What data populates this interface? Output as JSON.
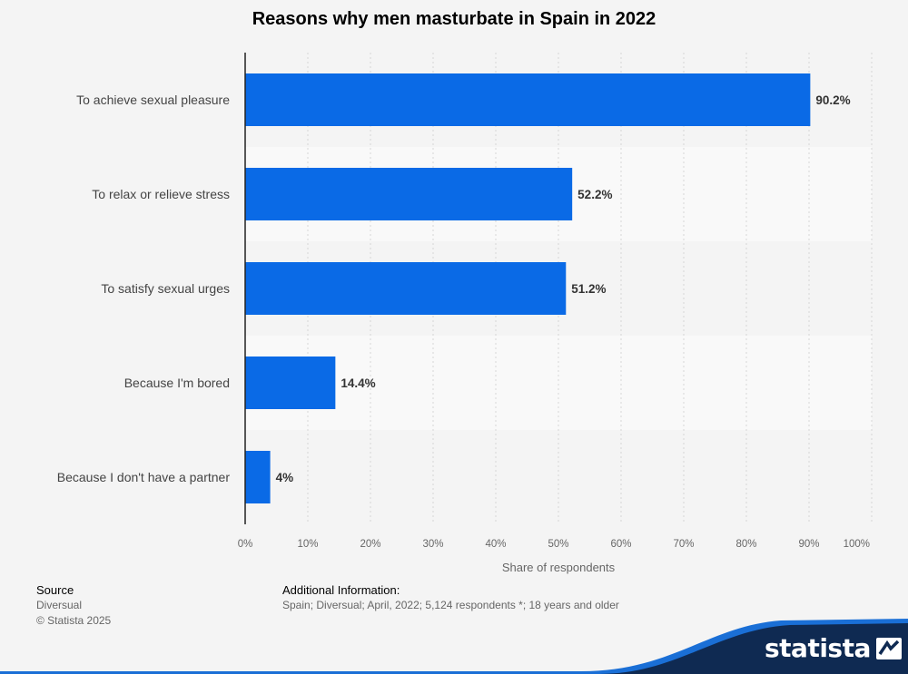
{
  "chart_data": {
    "type": "bar",
    "orientation": "horizontal",
    "title": "Reasons why men masturbate in Spain in 2022",
    "categories": [
      "To achieve sexual pleasure",
      "To relax or relieve stress",
      "To satisfy sexual urges",
      "Because I'm bored",
      "Because I don't have a partner"
    ],
    "values": [
      90.2,
      52.2,
      51.2,
      14.4,
      4
    ],
    "value_labels": [
      "90.2%",
      "52.2%",
      "51.2%",
      "14.4%",
      "4%"
    ],
    "xlabel": "Share of respondents",
    "ylabel": "",
    "xlim": [
      0,
      100
    ],
    "ticks": [
      0,
      10,
      20,
      30,
      40,
      50,
      60,
      70,
      80,
      90,
      100
    ],
    "tick_labels": [
      "0%",
      "10%",
      "20%",
      "30%",
      "40%",
      "50%",
      "60%",
      "70%",
      "80%",
      "90%",
      "100%"
    ],
    "grid": true,
    "bar_color": "#0a6ae6"
  },
  "footer": {
    "source_label": "Source",
    "source_name": "Diversual",
    "copyright": "© Statista 2025",
    "additional_label": "Additional Information:",
    "additional_text": "Spain; Diversual; April, 2022; 5,124 respondents *; 18 years and older"
  },
  "brand": {
    "name": "statista",
    "wave_color": "#0f2a52",
    "accent_color": "#1a6fd6"
  }
}
